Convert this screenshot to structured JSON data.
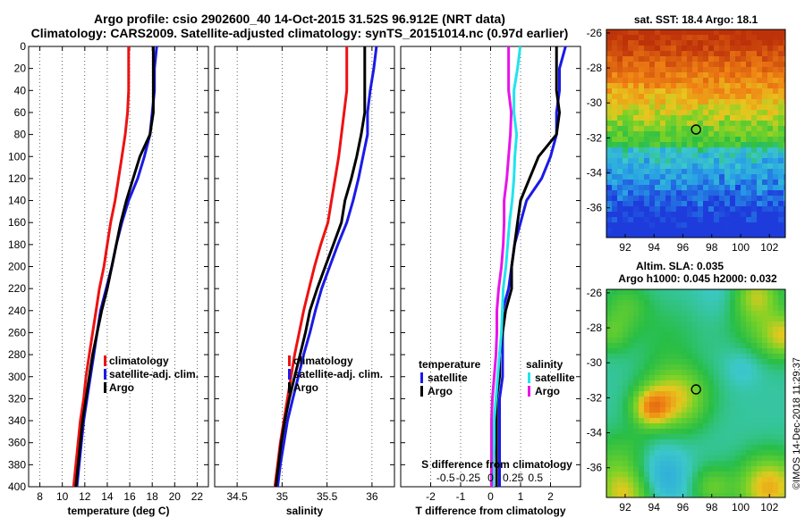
{
  "title_line1": "Argo profile: csio 2902600_40 14-Oct-2015 31.52S 96.912E (NRT data)",
  "title_line2": "Climatology: CARS2009. Satellite-adjusted climatology: synTS_20151014.nc (0.97d earlier)",
  "credit": "©IMOS 14-Dec-2018 11:29:37",
  "colors": {
    "red": "#ee1111",
    "blue": "#1a1ae6",
    "black": "#000000",
    "magenta": "#e815e8",
    "cyan": "#22e3ee"
  },
  "depth_ticks": [
    0,
    20,
    40,
    60,
    80,
    100,
    120,
    140,
    160,
    180,
    200,
    220,
    240,
    260,
    280,
    300,
    320,
    340,
    360,
    380,
    400
  ],
  "chart_data": [
    {
      "type": "line",
      "id": "temperature",
      "xlabel": "temperature (deg C)",
      "xlim": [
        7,
        23
      ],
      "ylim": [
        0,
        400
      ],
      "xticks": [
        8,
        10,
        12,
        14,
        16,
        18,
        20,
        22
      ],
      "depth": [
        0,
        20,
        40,
        60,
        80,
        100,
        120,
        140,
        160,
        180,
        200,
        220,
        240,
        260,
        280,
        300,
        320,
        340,
        360,
        380,
        400
      ],
      "series": [
        {
          "name": "climatology",
          "color": "#ee1111",
          "values": [
            15.9,
            15.9,
            15.9,
            15.8,
            15.6,
            15.3,
            15.0,
            14.7,
            14.3,
            14.0,
            13.7,
            13.3,
            13.0,
            12.7,
            12.4,
            12.1,
            11.9,
            11.6,
            11.4,
            11.2,
            11.0
          ]
        },
        {
          "name": "satellite-adj. clim.",
          "color": "#1a1ae6",
          "values": [
            18.4,
            18.2,
            18.2,
            18.0,
            17.8,
            17.3,
            16.7,
            15.9,
            15.3,
            14.8,
            14.4,
            13.9,
            13.4,
            13.1,
            12.8,
            12.5,
            12.2,
            11.9,
            11.7,
            11.5,
            11.3
          ]
        },
        {
          "name": "Argo",
          "color": "#000000",
          "values": [
            18.1,
            18.1,
            18.1,
            18.1,
            17.8,
            16.9,
            16.3,
            15.7,
            15.2,
            14.8,
            14.4,
            14.0,
            13.5,
            13.1,
            12.7,
            12.4,
            12.1,
            11.8,
            11.6,
            11.4,
            11.2
          ]
        }
      ],
      "legend": [
        "climatology",
        "satellite-adj. clim.",
        "Argo"
      ]
    },
    {
      "type": "line",
      "id": "salinity",
      "xlabel": "salinity",
      "xlim": [
        34.25,
        36.25
      ],
      "ylim": [
        0,
        400
      ],
      "xticks": [
        34.5,
        35,
        35.5,
        36
      ],
      "xticklabels": [
        "34.5",
        "35",
        "35.5",
        "36"
      ],
      "depth": [
        0,
        20,
        40,
        60,
        80,
        100,
        120,
        140,
        160,
        180,
        200,
        220,
        240,
        260,
        280,
        300,
        320,
        340,
        360,
        380,
        400
      ],
      "series": [
        {
          "name": "climatology",
          "color": "#ee1111",
          "values": [
            35.72,
            35.72,
            35.72,
            35.69,
            35.66,
            35.63,
            35.59,
            35.55,
            35.51,
            35.43,
            35.36,
            35.3,
            35.24,
            35.19,
            35.14,
            35.1,
            35.06,
            35.02,
            34.98,
            34.95,
            34.92
          ]
        },
        {
          "name": "satellite-adj. clim.",
          "color": "#1a1ae6",
          "values": [
            36.05,
            36.02,
            35.98,
            35.95,
            35.95,
            35.9,
            35.85,
            35.79,
            35.72,
            35.62,
            35.53,
            35.44,
            35.37,
            35.31,
            35.24,
            35.18,
            35.12,
            35.06,
            35.02,
            34.98,
            34.95
          ]
        },
        {
          "name": "Argo",
          "color": "#000000",
          "values": [
            35.92,
            35.92,
            35.92,
            35.92,
            35.88,
            35.83,
            35.77,
            35.7,
            35.66,
            35.57,
            35.48,
            35.39,
            35.31,
            35.26,
            35.2,
            35.14,
            35.08,
            35.03,
            34.99,
            34.96,
            34.93
          ]
        }
      ],
      "legend": [
        "climatology",
        "satellite-adj. clim.",
        "Argo"
      ]
    },
    {
      "type": "line",
      "id": "difference",
      "xlabel": "T difference from climatology",
      "xlim": [
        -3,
        3
      ],
      "ylim": [
        0,
        400
      ],
      "xticks": [
        -2,
        -1,
        0,
        1,
        2
      ],
      "top_axis_label": "S difference from climatology",
      "top_ticks": [
        -0.5,
        -0.25,
        0,
        0.25,
        0.5
      ],
      "top_ticklabels": [
        "-0.5",
        "-0.25",
        "0",
        "0.25",
        "0.5"
      ],
      "depth": [
        0,
        20,
        40,
        60,
        80,
        100,
        120,
        140,
        160,
        180,
        200,
        220,
        240,
        260,
        280,
        300,
        320,
        340,
        360,
        380,
        400
      ],
      "series": [
        {
          "name": "T satellite",
          "group": "temperature",
          "color": "#1a1ae6",
          "values": [
            2.5,
            2.3,
            2.3,
            2.2,
            2.2,
            2.0,
            1.7,
            1.2,
            1.0,
            0.8,
            0.7,
            0.6,
            0.4,
            0.4,
            0.4,
            0.4,
            0.3,
            0.3,
            0.3,
            0.3,
            0.3
          ]
        },
        {
          "name": "T Argo",
          "group": "temperature",
          "color": "#000000",
          "values": [
            2.2,
            2.2,
            2.2,
            2.3,
            2.2,
            1.6,
            1.3,
            1.0,
            0.9,
            0.8,
            0.7,
            0.7,
            0.5,
            0.4,
            0.3,
            0.3,
            0.2,
            0.2,
            0.2,
            0.2,
            0.2
          ]
        },
        {
          "name": "S satellite",
          "group": "salinity",
          "color": "#22e3ee",
          "values": [
            0.33,
            0.3,
            0.26,
            0.26,
            0.29,
            0.27,
            0.26,
            0.24,
            0.21,
            0.19,
            0.17,
            0.14,
            0.13,
            0.12,
            0.1,
            0.08,
            0.06,
            0.04,
            0.04,
            0.03,
            0.03
          ]
        },
        {
          "name": "S Argo",
          "group": "salinity",
          "color": "#e815e8",
          "values": [
            0.2,
            0.2,
            0.2,
            0.23,
            0.22,
            0.2,
            0.18,
            0.15,
            0.15,
            0.14,
            0.12,
            0.09,
            0.07,
            0.07,
            0.06,
            0.04,
            0.02,
            0.01,
            0.01,
            0.01,
            0.01
          ]
        }
      ],
      "legend_groups": [
        {
          "title": "temperature",
          "items": [
            {
              "label": "satellite",
              "color": "#1a1ae6"
            },
            {
              "label": "Argo",
              "color": "#000000"
            }
          ]
        },
        {
          "title": "salinity",
          "items": [
            {
              "label": "satellite",
              "color": "#22e3ee"
            },
            {
              "label": "Argo",
              "color": "#e815e8"
            }
          ]
        }
      ]
    },
    {
      "type": "heatmap",
      "id": "sst_map",
      "title": "sat. SST: 18.4 Argo: 18.1",
      "xlim": [
        90.7,
        103.1
      ],
      "ylim": [
        -37.7,
        -25.8
      ],
      "xticks": [
        92,
        94,
        96,
        98,
        100,
        102
      ],
      "yticks": [
        -26,
        -28,
        -30,
        -32,
        -34,
        -36
      ],
      "marker": {
        "lon": 96.912,
        "lat": -31.52
      }
    },
    {
      "type": "heatmap",
      "id": "sla_map",
      "title_line1": "Altim. SLA: 0.035",
      "title_line2": "Argo h1000: 0.045 h2000: 0.032",
      "xlim": [
        90.7,
        103.1
      ],
      "ylim": [
        -37.7,
        -25.8
      ],
      "xticks": [
        92,
        94,
        96,
        98,
        100,
        102
      ],
      "yticks": [
        -26,
        -28,
        -30,
        -32,
        -34,
        -36
      ],
      "marker": {
        "lon": 96.912,
        "lat": -31.52
      }
    }
  ]
}
